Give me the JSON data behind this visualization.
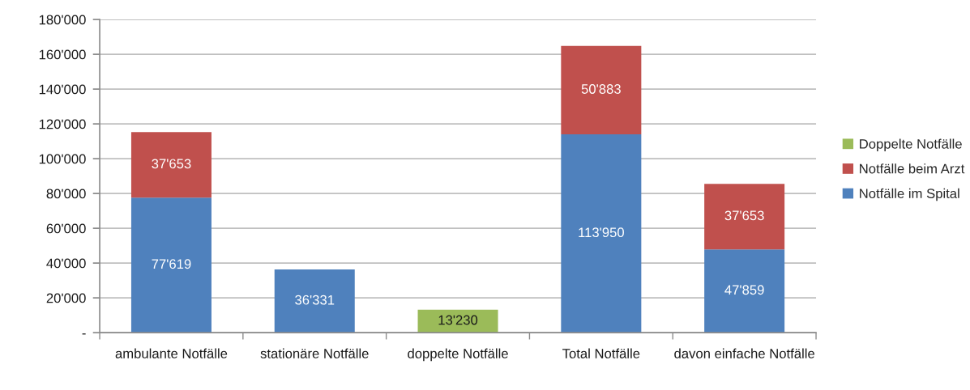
{
  "chart_data": {
    "type": "bar",
    "stacked": true,
    "categories": [
      "ambulante Notfälle",
      "stationäre Notfälle",
      "doppelte Notfälle",
      "Total Notfälle",
      "davon einfache Notfälle"
    ],
    "series": [
      {
        "name": "Notfälle im Spital",
        "color": "#4f81bd",
        "values": [
          77619,
          36331,
          null,
          113950,
          47859
        ],
        "value_labels": [
          "77'619",
          "36'331",
          null,
          "113'950",
          "47'859"
        ]
      },
      {
        "name": "Notfälle beim Arzt",
        "color": "#c0504d",
        "values": [
          37653,
          null,
          null,
          50883,
          37653
        ],
        "value_labels": [
          "37'653",
          null,
          null,
          "50'883",
          "37'653"
        ]
      },
      {
        "name": "Doppelte Notfälle",
        "color": "#9bbb59",
        "values": [
          null,
          null,
          13230,
          null,
          null
        ],
        "value_labels": [
          null,
          null,
          "13'230",
          null,
          null
        ]
      }
    ],
    "ylim": [
      0,
      180000
    ],
    "yticks": [
      {
        "value": 0,
        "label": "-"
      },
      {
        "value": 20000,
        "label": "20'000"
      },
      {
        "value": 40000,
        "label": "40'000"
      },
      {
        "value": 60000,
        "label": "60'000"
      },
      {
        "value": 80000,
        "label": "80'000"
      },
      {
        "value": 100000,
        "label": "100'000"
      },
      {
        "value": 120000,
        "label": "120'000"
      },
      {
        "value": 140000,
        "label": "140'000"
      },
      {
        "value": 160000,
        "label": "160'000"
      },
      {
        "value": 180000,
        "label": "180'000"
      }
    ],
    "grid": "y",
    "legend": "right"
  }
}
